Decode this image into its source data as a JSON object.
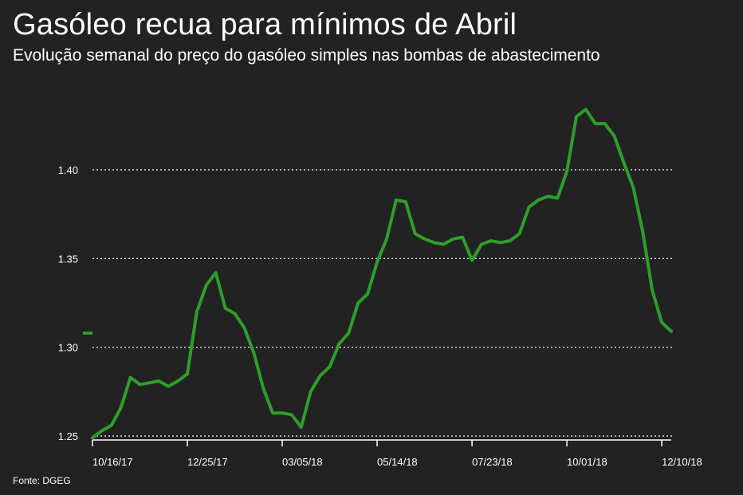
{
  "header": {
    "title": "Gasóleo recua para mínimos de Abril",
    "subtitle": "Evolução semanal do preço do gasóleo simples nas bombas de abastecimento"
  },
  "footer": {
    "source": "Fonte: DGEG"
  },
  "colors": {
    "background": "#222222",
    "line": "#2e9e2a",
    "grid": "#ffffff",
    "text": "#ffffff"
  },
  "chart_data": {
    "type": "line",
    "title": "Gasóleo recua para mínimos de Abril",
    "subtitle": "Evolução semanal do preço do gasóleo simples nas bombas de abastecimento",
    "xlabel": "",
    "ylabel": "",
    "ylim": [
      1.25,
      1.45
    ],
    "grid": true,
    "yticks": [
      1.25,
      1.3,
      1.35,
      1.4
    ],
    "ytick_labels": [
      "1.25",
      "1.30",
      "1.35",
      "1.40"
    ],
    "xtick_labels": [
      "10/16/17",
      "12/25/17",
      "03/05/18",
      "05/14/18",
      "07/23/18",
      "10/01/18",
      "12/10/18"
    ],
    "xtick_index": [
      0,
      10,
      20,
      30,
      40,
      50,
      60
    ],
    "series": [
      {
        "values": [
          1.249,
          1.253,
          1.256,
          1.266,
          1.283,
          1.279,
          1.28,
          1.281,
          1.278,
          1.281,
          1.285,
          1.32,
          1.335,
          1.342,
          1.322,
          1.319,
          1.311,
          1.297,
          1.277,
          1.263,
          1.263,
          1.262,
          1.255,
          1.275,
          1.284,
          1.289,
          1.302,
          1.308,
          1.325,
          1.33,
          1.348,
          1.361,
          1.383,
          1.382,
          1.364,
          1.361,
          1.359,
          1.358,
          1.361,
          1.362,
          1.349,
          1.358,
          1.36,
          1.359,
          1.36,
          1.364,
          1.379,
          1.383,
          1.385,
          1.384,
          1.399,
          1.43,
          1.434,
          1.426,
          1.426,
          1.419,
          1.404,
          1.39,
          1.365,
          1.332,
          1.314,
          1.309
        ]
      }
    ]
  }
}
